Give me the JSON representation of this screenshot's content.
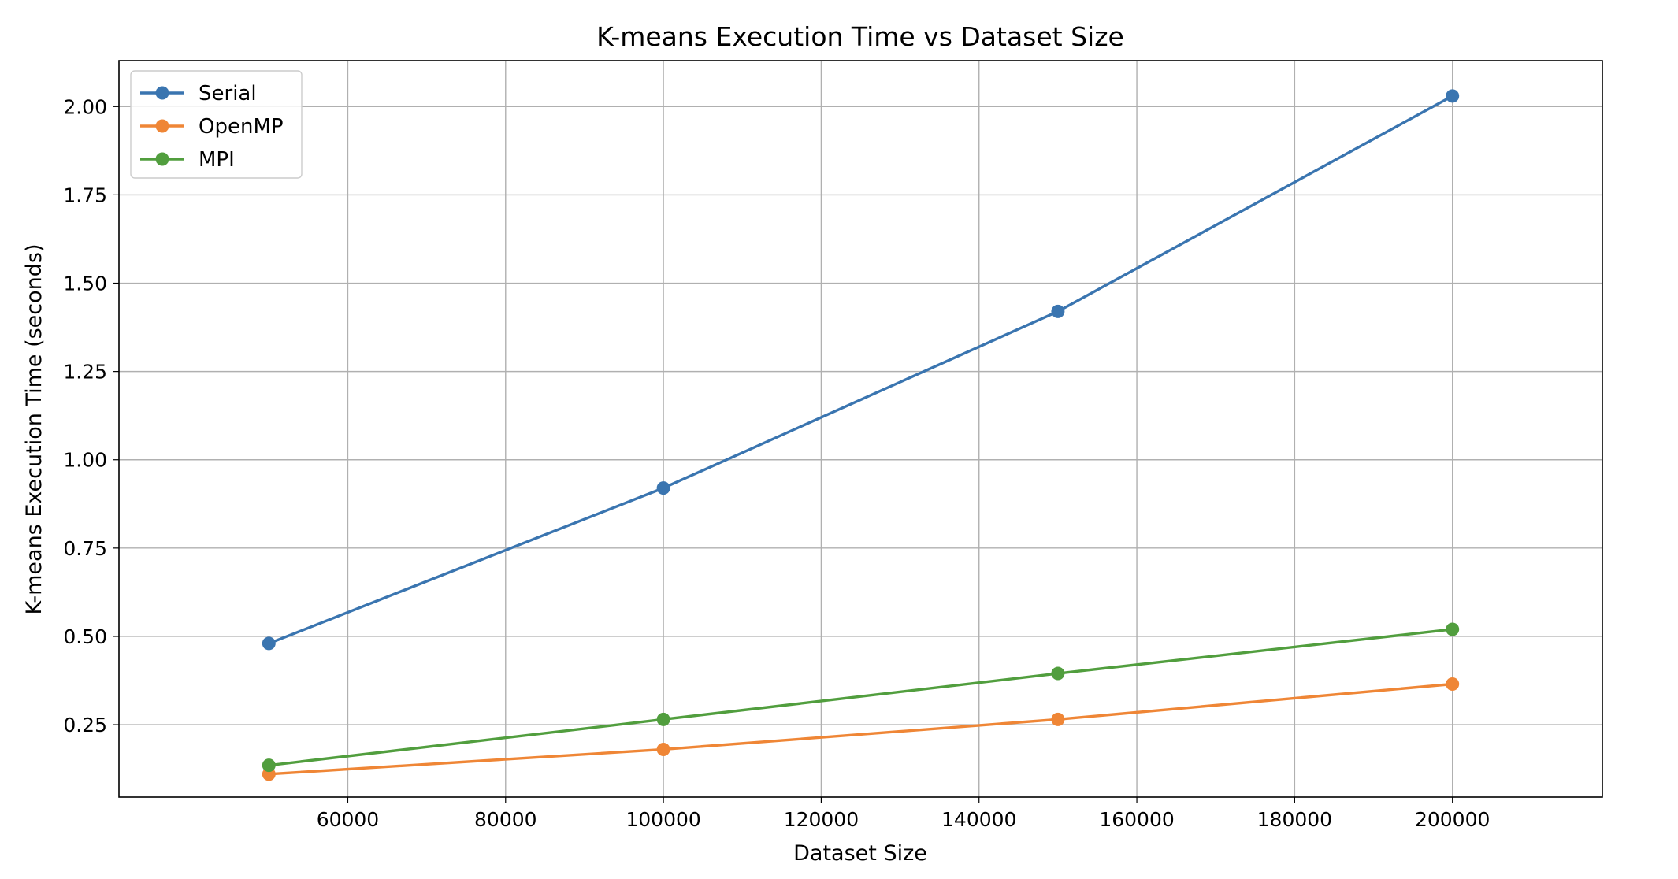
{
  "chart_data": {
    "type": "line",
    "title": "K-means Execution Time vs Dataset Size",
    "xlabel": "Dataset Size",
    "ylabel": "K-means Execution Time (seconds)",
    "x": [
      50000,
      100000,
      150000,
      200000
    ],
    "series": [
      {
        "name": "Serial",
        "color": "#3a75b0",
        "values": [
          0.48,
          0.92,
          1.42,
          2.03
        ]
      },
      {
        "name": "OpenMP",
        "color": "#ef8636",
        "values": [
          0.11,
          0.18,
          0.265,
          0.365
        ]
      },
      {
        "name": "MPI",
        "color": "#519e3e",
        "values": [
          0.135,
          0.265,
          0.395,
          0.52
        ]
      }
    ],
    "xlim": [
      31000,
      219000
    ],
    "ylim": [
      0.045,
      2.13
    ],
    "xticks": [
      60000,
      80000,
      100000,
      120000,
      140000,
      160000,
      180000,
      200000
    ],
    "xtick_labels": [
      "60000",
      "80000",
      "100000",
      "120000",
      "140000",
      "160000",
      "180000",
      "200000"
    ],
    "yticks": [
      0.25,
      0.5,
      0.75,
      1.0,
      1.25,
      1.5,
      1.75,
      2.0
    ],
    "ytick_labels": [
      "0.25",
      "0.50",
      "0.75",
      "1.00",
      "1.25",
      "1.50",
      "1.75",
      "2.00"
    ],
    "grid": true,
    "legend_position": "top-left",
    "marker": "circle"
  }
}
